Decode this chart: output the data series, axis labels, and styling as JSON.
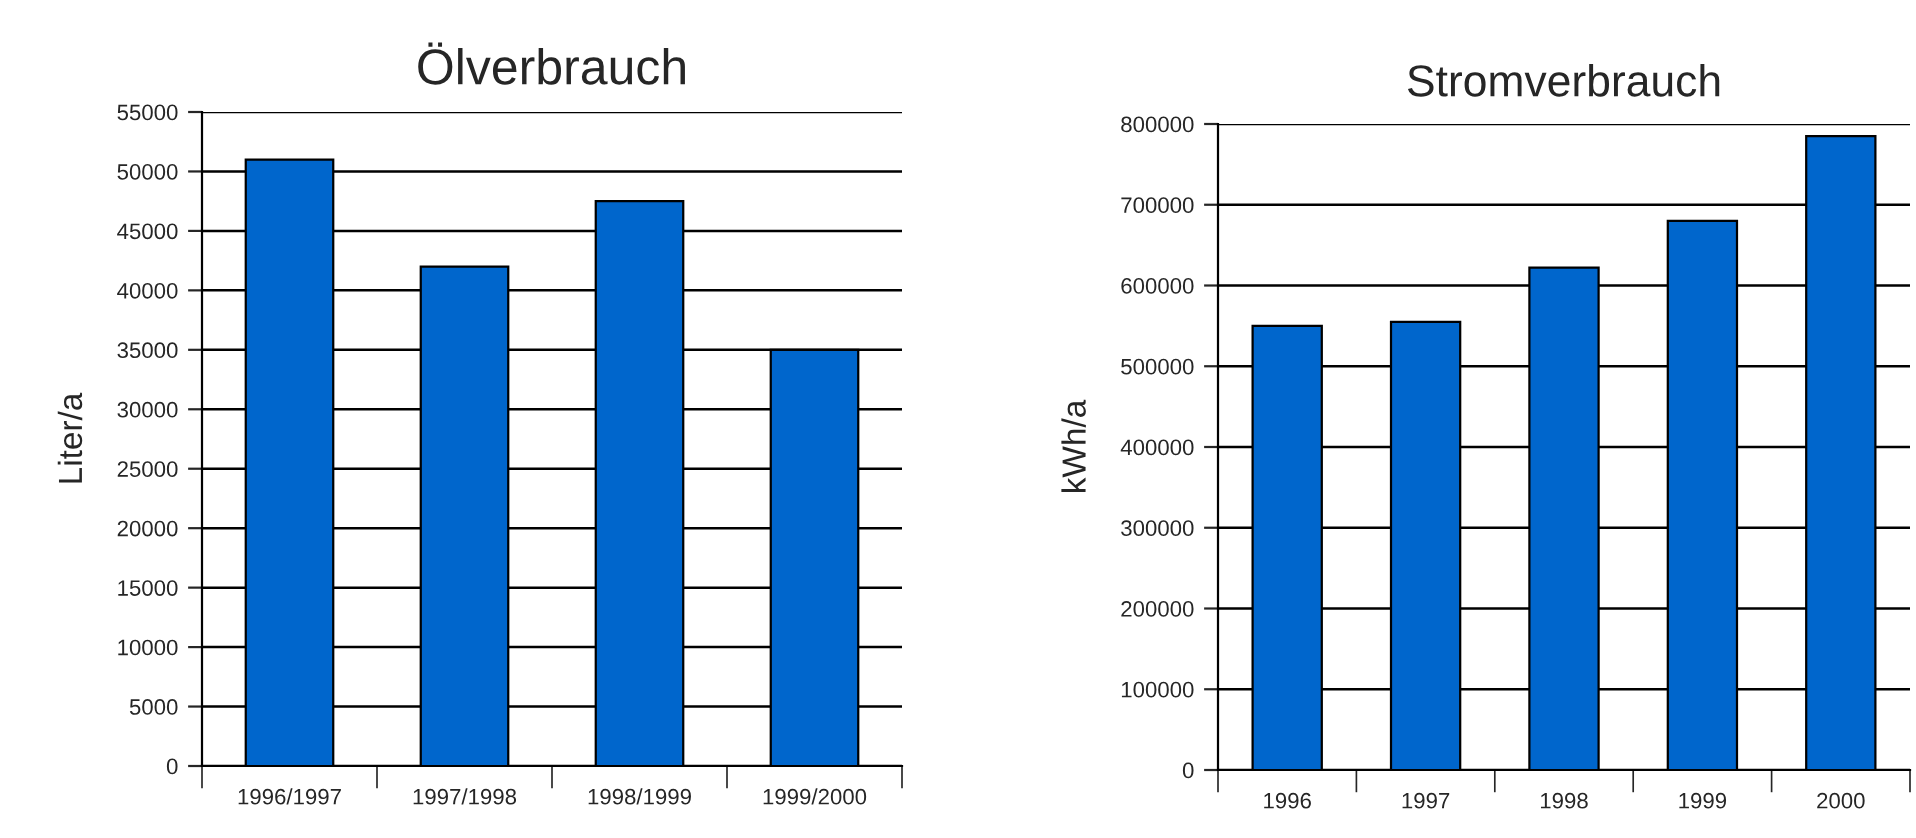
{
  "chart_data": [
    {
      "type": "bar",
      "title": "Ölverbrauch",
      "ylabel": "Liter/a",
      "categories": [
        "1996/1997",
        "1997/1998",
        "1998/1999",
        "1999/2000"
      ],
      "values": [
        51000,
        42000,
        47500,
        35000
      ],
      "color": "#0066cc",
      "ylim": [
        0,
        55000
      ],
      "yticks": [
        0,
        5000,
        10000,
        15000,
        20000,
        25000,
        30000,
        35000,
        40000,
        45000,
        50000,
        55000
      ],
      "grid": "y",
      "legend": false
    },
    {
      "type": "bar",
      "title": "Stromverbrauch",
      "ylabel": "kWh/a",
      "categories": [
        "1996",
        "1997",
        "1998",
        "1999",
        "2000"
      ],
      "values": [
        550000,
        555000,
        622000,
        680000,
        785000
      ],
      "color": "#0066cc",
      "ylim": [
        0,
        800000
      ],
      "yticks": [
        0,
        100000,
        200000,
        300000,
        400000,
        500000,
        600000,
        700000,
        800000
      ],
      "grid": "y",
      "legend": false
    }
  ]
}
